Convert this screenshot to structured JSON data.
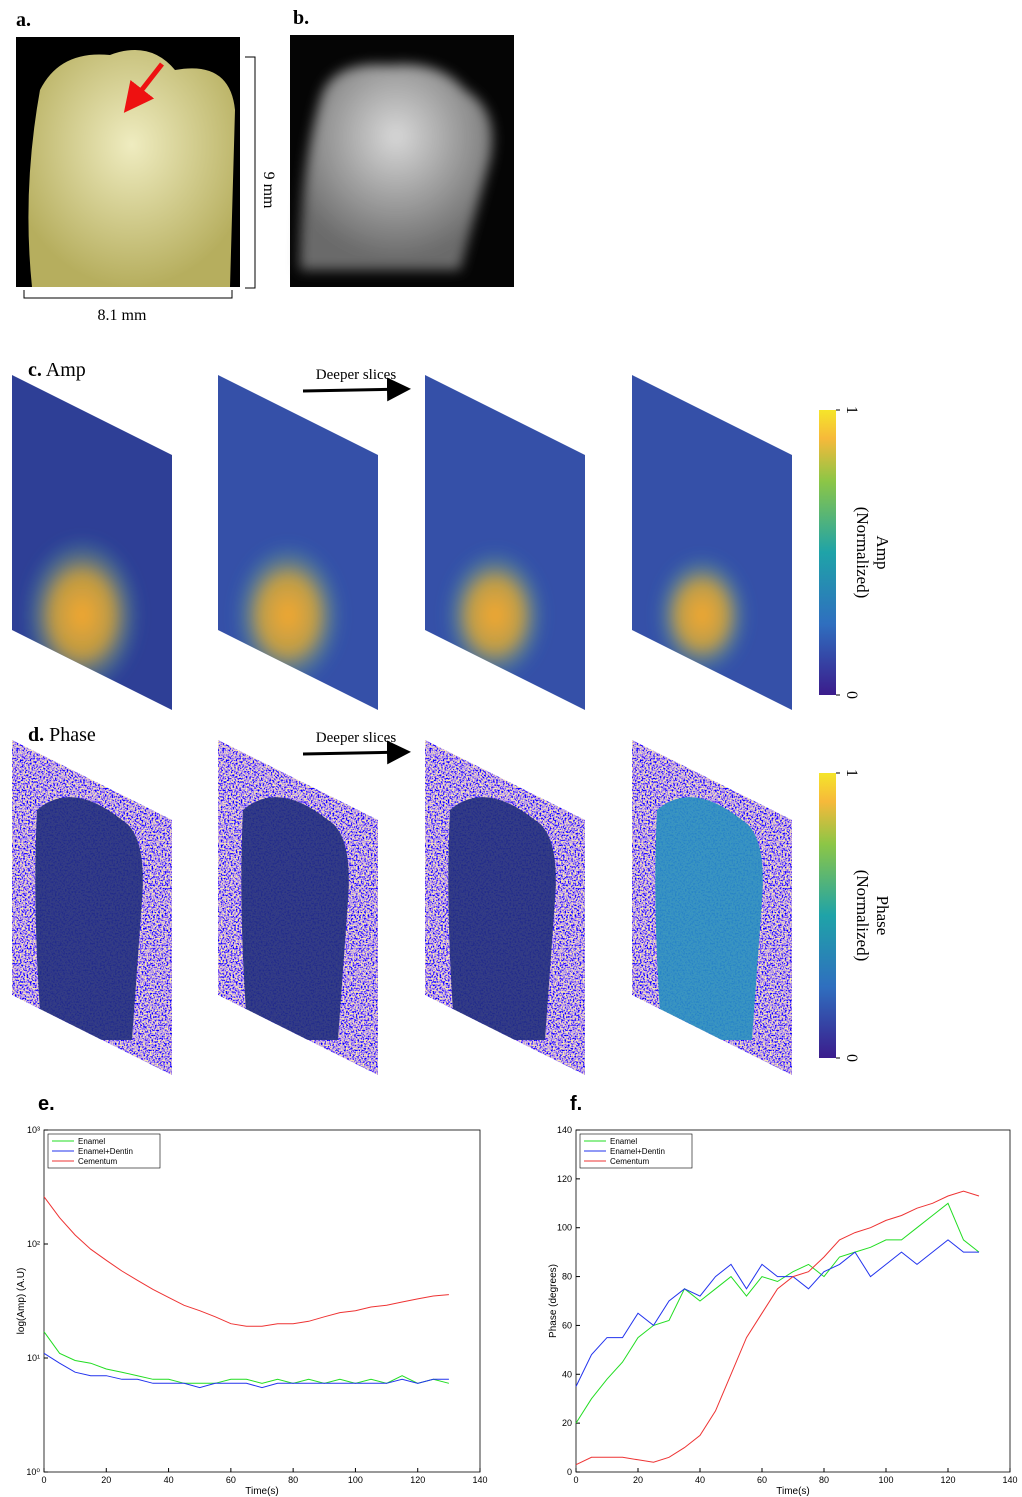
{
  "panels": {
    "a": {
      "label": "a.",
      "height": "9 mm",
      "width": "8.1 mm"
    },
    "b": {
      "label": "b."
    },
    "c": {
      "label": "c.",
      "title": "Amp",
      "arrow": "Deeper slices",
      "colorbar_ticks": [
        0,
        1
      ],
      "colorbar_title": "Amp",
      "colorbar_subtitle": "(Normalized)"
    },
    "d": {
      "label": "d.",
      "title": "Phase",
      "arrow": "Deeper slices",
      "colorbar_ticks": [
        0,
        1
      ],
      "colorbar_title": "Phase",
      "colorbar_subtitle": "(Normalized)"
    }
  },
  "chart_data": [
    {
      "type": "line",
      "panel_label": "e.",
      "xlabel": "Time(s)",
      "ylabel": "log(Amp) (A.U)",
      "log_y": true,
      "x": [
        0,
        5,
        10,
        15,
        20,
        25,
        30,
        35,
        40,
        45,
        50,
        55,
        60,
        65,
        70,
        75,
        80,
        85,
        90,
        95,
        100,
        105,
        110,
        115,
        120,
        125,
        130
      ],
      "xlim": [
        0,
        140
      ],
      "xticks": [
        0,
        20,
        40,
        60,
        80,
        100,
        120,
        140
      ],
      "ylim": [
        1,
        1000
      ],
      "yticks": [
        {
          "value": 1,
          "label": "10⁰"
        },
        {
          "value": 10,
          "label": "10¹"
        },
        {
          "value": 100,
          "label": "10²"
        },
        {
          "value": 1000,
          "label": "10³"
        }
      ],
      "legend": "top-left",
      "series": [
        {
          "name": "Enamel",
          "color": "#22dd22",
          "values": [
            17,
            11,
            9.5,
            9,
            8,
            7.5,
            7,
            6.5,
            6.5,
            6,
            6,
            6,
            6.5,
            6.5,
            6,
            6.5,
            6,
            6.5,
            6,
            6.5,
            6,
            6.5,
            6,
            7,
            6,
            6.5,
            6
          ]
        },
        {
          "name": "Enamel+Dentin",
          "color": "#2233ee",
          "values": [
            11,
            9,
            7.5,
            7,
            7,
            6.5,
            6.5,
            6,
            6,
            6,
            5.5,
            6,
            6,
            6,
            5.5,
            6,
            6,
            6,
            6,
            6,
            6,
            6,
            6,
            6.5,
            6,
            6.5,
            6.5
          ]
        },
        {
          "name": "Cementum",
          "color": "#ee3333",
          "values": [
            260,
            170,
            120,
            90,
            72,
            58,
            48,
            40,
            34,
            29,
            26,
            23,
            20,
            19,
            19,
            20,
            20,
            21,
            23,
            25,
            26,
            28,
            29,
            31,
            33,
            35,
            36
          ]
        }
      ]
    },
    {
      "type": "line",
      "panel_label": "f.",
      "xlabel": "Time(s)",
      "ylabel": "Phase (degrees)",
      "log_y": false,
      "x": [
        0,
        5,
        10,
        15,
        20,
        25,
        30,
        35,
        40,
        45,
        50,
        55,
        60,
        65,
        70,
        75,
        80,
        85,
        90,
        95,
        100,
        105,
        110,
        115,
        120,
        125,
        130
      ],
      "xlim": [
        0,
        140
      ],
      "xticks": [
        0,
        20,
        40,
        60,
        80,
        100,
        120,
        140
      ],
      "ylim": [
        0,
        140
      ],
      "yticks": [
        0,
        20,
        40,
        60,
        80,
        100,
        120,
        140
      ],
      "legend": "top-left",
      "series": [
        {
          "name": "Enamel",
          "color": "#22dd22",
          "values": [
            20,
            30,
            38,
            45,
            55,
            60,
            62,
            75,
            70,
            75,
            80,
            72,
            80,
            78,
            82,
            85,
            80,
            88,
            90,
            92,
            95,
            95,
            100,
            105,
            110,
            95,
            90
          ]
        },
        {
          "name": "Enamel+Dentin",
          "color": "#2233ee",
          "values": [
            35,
            48,
            55,
            55,
            65,
            60,
            70,
            75,
            72,
            80,
            85,
            75,
            85,
            80,
            80,
            75,
            82,
            85,
            90,
            80,
            85,
            90,
            85,
            90,
            95,
            90,
            90
          ]
        },
        {
          "name": "Cementum",
          "color": "#ee3333",
          "values": [
            3,
            6,
            6,
            6,
            5,
            4,
            6,
            10,
            15,
            25,
            40,
            55,
            65,
            75,
            80,
            82,
            88,
            95,
            98,
            100,
            103,
            105,
            108,
            110,
            113,
            115,
            113
          ]
        }
      ]
    }
  ]
}
